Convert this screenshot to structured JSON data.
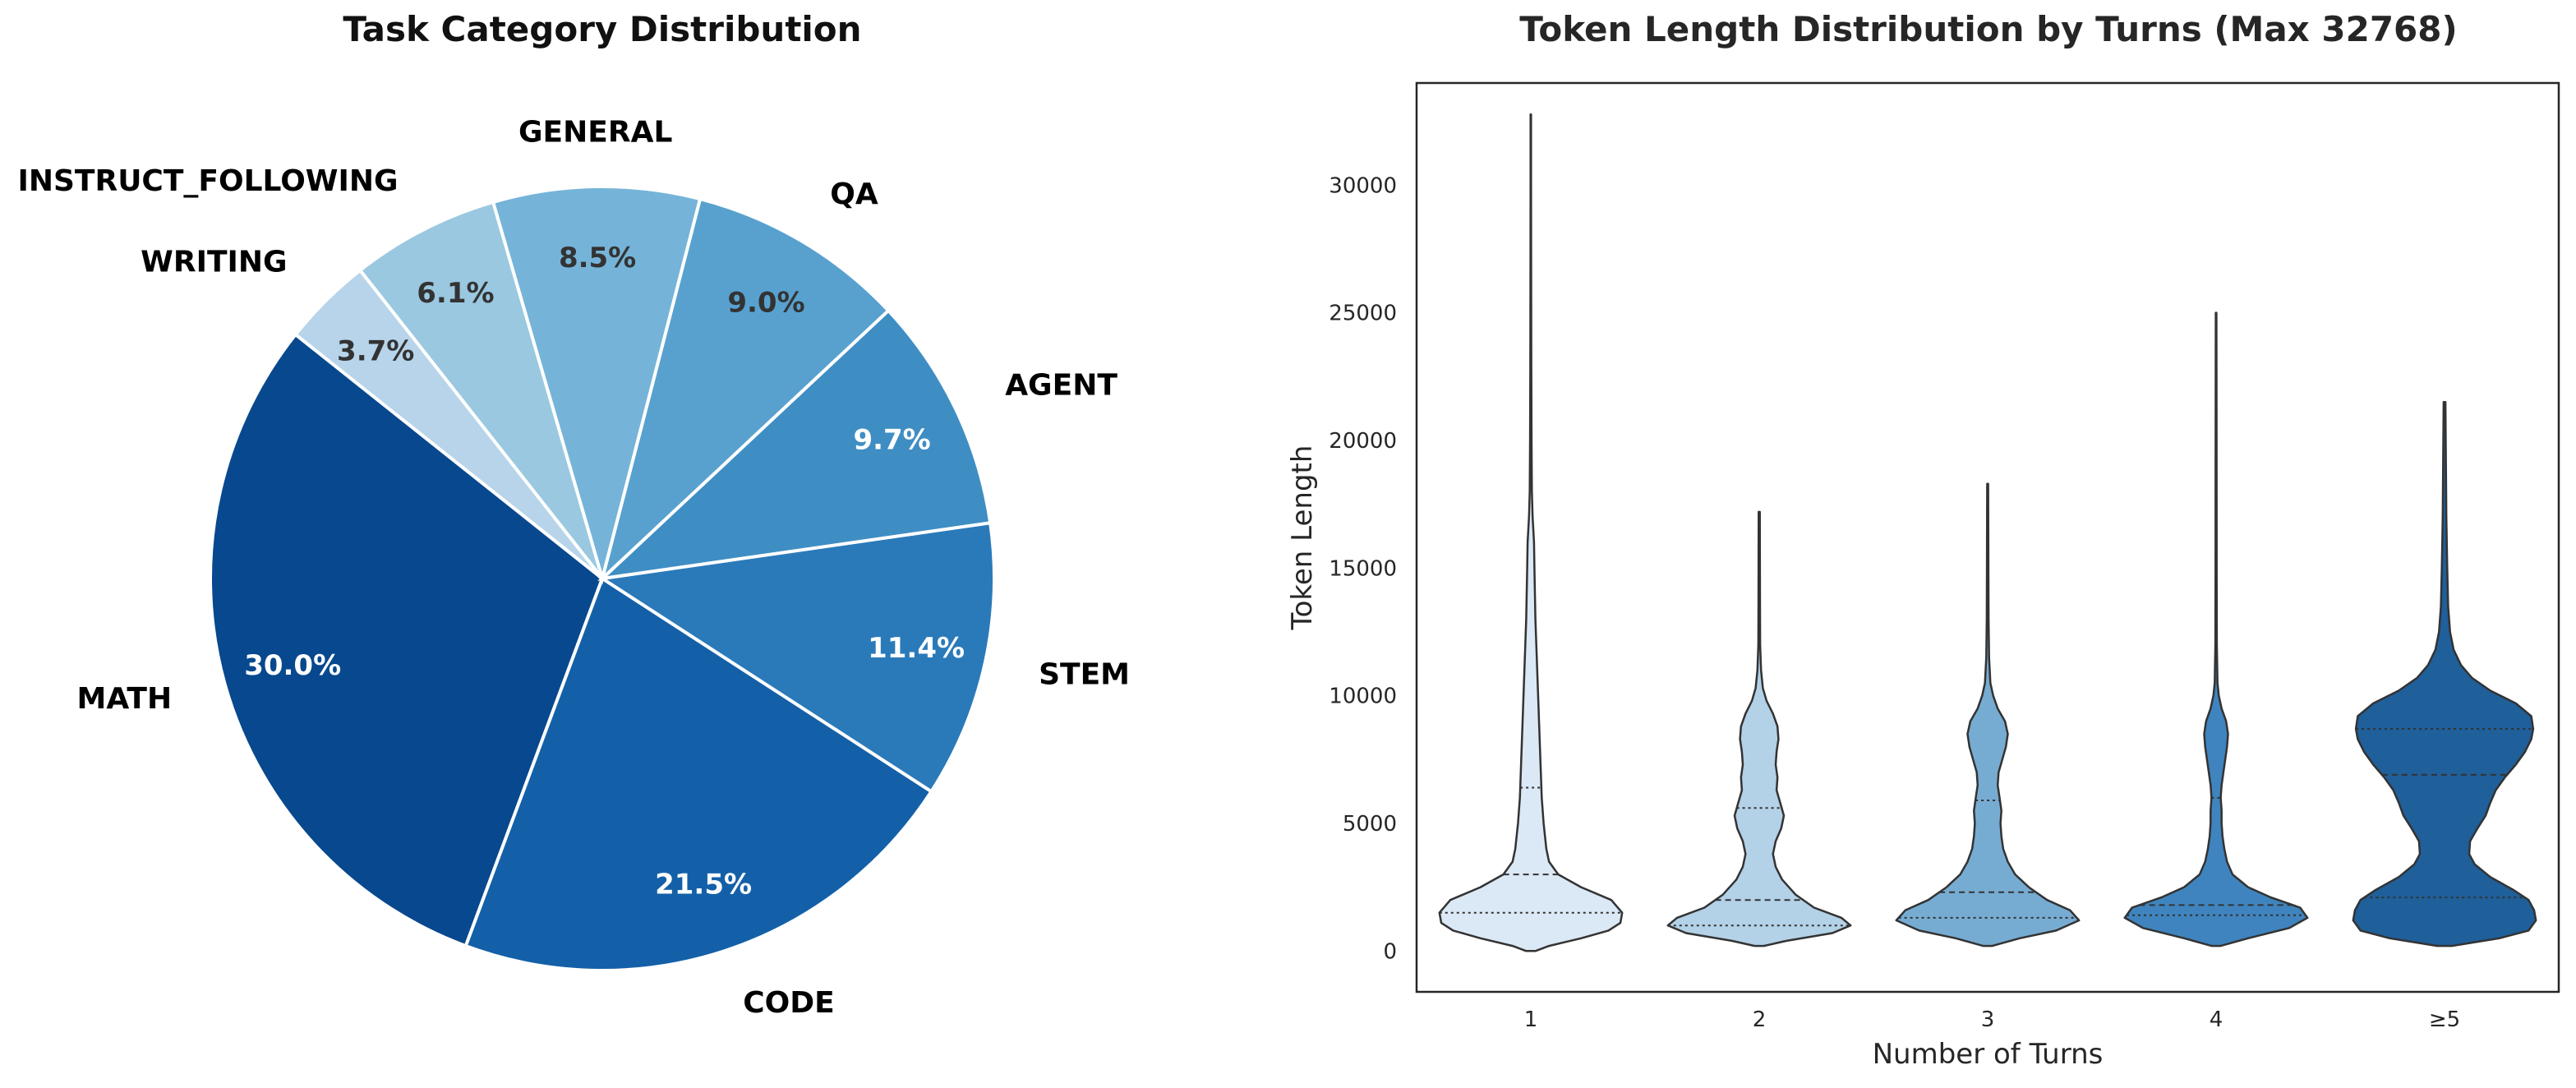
{
  "chart_data": [
    {
      "type": "pie",
      "title": "Task Category Distribution",
      "slices": [
        {
          "label": "MATH",
          "value": 30.0,
          "pct_label": "30.0%",
          "color": "#08488e",
          "text_color": "#ffffff"
        },
        {
          "label": "CODE",
          "value": 21.5,
          "pct_label": "21.5%",
          "color": "#1460a8",
          "text_color": "#ffffff"
        },
        {
          "label": "STEM",
          "value": 11.4,
          "pct_label": "11.4%",
          "color": "#2a7aba",
          "text_color": "#ffffff"
        },
        {
          "label": "AGENT",
          "value": 9.7,
          "pct_label": "9.7%",
          "color": "#3e8ec4",
          "text_color": "#ffffff"
        },
        {
          "label": "QA",
          "value": 9.0,
          "pct_label": "9.0%",
          "color": "#58a1cf",
          "text_color": "#333333"
        },
        {
          "label": "GENERAL",
          "value": 8.5,
          "pct_label": "8.5%",
          "color": "#75b4d8",
          "text_color": "#333333"
        },
        {
          "label": "INSTRUCT_FOLLOWING",
          "value": 6.1,
          "pct_label": "6.1%",
          "color": "#9ac8e0",
          "text_color": "#333333"
        },
        {
          "label": "WRITING",
          "value": 3.7,
          "pct_label": "3.7%",
          "color": "#b7d4ea",
          "text_color": "#333333"
        }
      ]
    },
    {
      "type": "violin",
      "title": "Token Length Distribution by Turns (Max 32768)",
      "xlabel": "Number of Turns",
      "ylabel": "Token Length",
      "categories": [
        "1",
        "2",
        "3",
        "4",
        "≥5"
      ],
      "ylim": [
        -1600,
        34000
      ],
      "yticks": [
        0,
        5000,
        10000,
        15000,
        20000,
        25000,
        30000
      ],
      "series": [
        {
          "category": "1",
          "color": "#dbe8f5",
          "quartiles": [
            1500,
            3000,
            6400
          ],
          "profile": [
            [
              0,
              0.05
            ],
            [
              200,
              0.2
            ],
            [
              500,
              0.55
            ],
            [
              800,
              0.85
            ],
            [
              1100,
              0.98
            ],
            [
              1500,
              1.0
            ],
            [
              2000,
              0.88
            ],
            [
              2500,
              0.55
            ],
            [
              3000,
              0.3
            ],
            [
              3500,
              0.2
            ],
            [
              4000,
              0.17
            ],
            [
              5000,
              0.14
            ],
            [
              6000,
              0.12
            ],
            [
              7000,
              0.11
            ],
            [
              8000,
              0.1
            ],
            [
              9000,
              0.09
            ],
            [
              10000,
              0.08
            ],
            [
              11000,
              0.07
            ],
            [
              12000,
              0.06
            ],
            [
              13000,
              0.05
            ],
            [
              14000,
              0.045
            ],
            [
              15000,
              0.04
            ],
            [
              16000,
              0.035
            ],
            [
              17000,
              0.02
            ],
            [
              18000,
              0.012
            ],
            [
              20000,
              0.008
            ],
            [
              23000,
              0.005
            ],
            [
              27000,
              0.004
            ],
            [
              30000,
              0.003
            ],
            [
              32768,
              0.003
            ]
          ]
        },
        {
          "category": "2",
          "color": "#b3d1e7",
          "quartiles": [
            1000,
            2000,
            5600
          ],
          "profile": [
            [
              200,
              0.05
            ],
            [
              400,
              0.3
            ],
            [
              700,
              0.8
            ],
            [
              1000,
              1.0
            ],
            [
              1300,
              0.9
            ],
            [
              1700,
              0.6
            ],
            [
              2200,
              0.4
            ],
            [
              2800,
              0.25
            ],
            [
              3300,
              0.18
            ],
            [
              3800,
              0.15
            ],
            [
              4300,
              0.18
            ],
            [
              4800,
              0.24
            ],
            [
              5300,
              0.27
            ],
            [
              5800,
              0.23
            ],
            [
              6300,
              0.19
            ],
            [
              6800,
              0.2
            ],
            [
              7300,
              0.18
            ],
            [
              7800,
              0.19
            ],
            [
              8300,
              0.21
            ],
            [
              8800,
              0.2
            ],
            [
              9300,
              0.15
            ],
            [
              9800,
              0.08
            ],
            [
              10300,
              0.04
            ],
            [
              11000,
              0.02
            ],
            [
              12000,
              0.01
            ],
            [
              14000,
              0.008
            ],
            [
              17200,
              0.006
            ]
          ]
        },
        {
          "category": "3",
          "color": "#77acd2",
          "quartiles": [
            1300,
            2300,
            5900
          ],
          "profile": [
            [
              200,
              0.05
            ],
            [
              500,
              0.35
            ],
            [
              800,
              0.75
            ],
            [
              1200,
              1.0
            ],
            [
              1600,
              0.9
            ],
            [
              2000,
              0.65
            ],
            [
              2500,
              0.45
            ],
            [
              3000,
              0.3
            ],
            [
              3500,
              0.22
            ],
            [
              4000,
              0.17
            ],
            [
              4500,
              0.15
            ],
            [
              5000,
              0.14
            ],
            [
              5500,
              0.15
            ],
            [
              6000,
              0.13
            ],
            [
              6500,
              0.11
            ],
            [
              7000,
              0.12
            ],
            [
              7500,
              0.16
            ],
            [
              8000,
              0.2
            ],
            [
              8500,
              0.22
            ],
            [
              9000,
              0.19
            ],
            [
              9500,
              0.11
            ],
            [
              10000,
              0.06
            ],
            [
              10500,
              0.03
            ],
            [
              11500,
              0.015
            ],
            [
              13000,
              0.01
            ],
            [
              15000,
              0.008
            ],
            [
              18300,
              0.005
            ]
          ]
        },
        {
          "category": "4",
          "color": "#3f84be",
          "quartiles": [
            1400,
            1800,
            6000
          ],
          "profile": [
            [
              200,
              0.05
            ],
            [
              500,
              0.35
            ],
            [
              900,
              0.8
            ],
            [
              1300,
              1.0
            ],
            [
              1700,
              0.92
            ],
            [
              2100,
              0.6
            ],
            [
              2500,
              0.35
            ],
            [
              3000,
              0.18
            ],
            [
              3500,
              0.12
            ],
            [
              4000,
              0.09
            ],
            [
              4500,
              0.07
            ],
            [
              5000,
              0.06
            ],
            [
              5500,
              0.06
            ],
            [
              6000,
              0.05
            ],
            [
              6500,
              0.06
            ],
            [
              7000,
              0.08
            ],
            [
              7500,
              0.1
            ],
            [
              8000,
              0.12
            ],
            [
              8500,
              0.13
            ],
            [
              9000,
              0.11
            ],
            [
              9500,
              0.06
            ],
            [
              10000,
              0.03
            ],
            [
              10500,
              0.015
            ],
            [
              12000,
              0.008
            ],
            [
              15000,
              0.006
            ],
            [
              20000,
              0.005
            ],
            [
              25000,
              0.004
            ]
          ]
        },
        {
          "category": "≥5",
          "color": "#1f5f9a",
          "quartiles": [
            2100,
            6900,
            8700
          ],
          "profile": [
            [
              200,
              0.08
            ],
            [
              500,
              0.6
            ],
            [
              800,
              0.92
            ],
            [
              1200,
              1.0
            ],
            [
              1600,
              0.98
            ],
            [
              2000,
              0.92
            ],
            [
              2400,
              0.75
            ],
            [
              2900,
              0.5
            ],
            [
              3400,
              0.33
            ],
            [
              3800,
              0.27
            ],
            [
              4300,
              0.28
            ],
            [
              4800,
              0.36
            ],
            [
              5300,
              0.45
            ],
            [
              5800,
              0.5
            ],
            [
              6300,
              0.56
            ],
            [
              6800,
              0.66
            ],
            [
              7300,
              0.78
            ],
            [
              7800,
              0.88
            ],
            [
              8300,
              0.95
            ],
            [
              8700,
              0.97
            ],
            [
              9200,
              0.95
            ],
            [
              9700,
              0.78
            ],
            [
              10200,
              0.5
            ],
            [
              10700,
              0.3
            ],
            [
              11200,
              0.18
            ],
            [
              11800,
              0.1
            ],
            [
              12500,
              0.06
            ],
            [
              13500,
              0.04
            ],
            [
              15000,
              0.03
            ],
            [
              17000,
              0.02
            ],
            [
              19000,
              0.015
            ],
            [
              21500,
              0.01
            ]
          ]
        }
      ]
    }
  ]
}
